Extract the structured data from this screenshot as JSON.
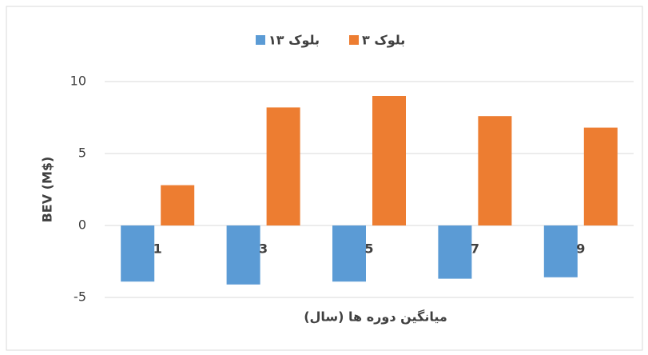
{
  "chart_data": {
    "type": "bar",
    "categories": [
      "1",
      "3",
      "5",
      "7",
      "9"
    ],
    "series": [
      {
        "name": "بلوک ۱۳",
        "color": "#5b9bd5",
        "values": [
          -3.9,
          -4.1,
          -3.9,
          -3.7,
          -3.6
        ]
      },
      {
        "name": "بلوک ۳",
        "color": "#ed7d31",
        "values": [
          2.8,
          8.2,
          9.0,
          7.6,
          6.8
        ]
      }
    ],
    "xlabel": "میانگین دوره ها (سال)",
    "ylabel": "BEV (M$)",
    "ylim": [
      -5,
      10
    ],
    "yticks": [
      -5,
      0,
      5,
      10
    ],
    "grid": true,
    "legend": "top"
  }
}
